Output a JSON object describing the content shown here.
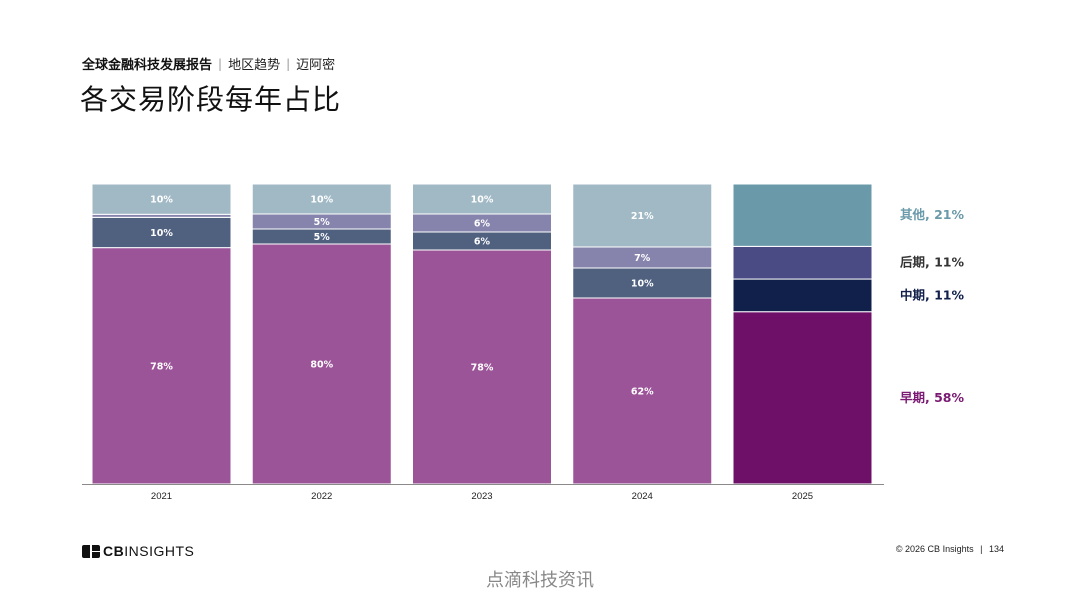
{
  "header": {
    "report": "全球金融科技发展报告",
    "section": "地区趋势",
    "region": "迈阿密",
    "separator": "|",
    "title": "各交易阶段每年占比"
  },
  "chart_data": {
    "type": "bar",
    "stacked": true,
    "categories": [
      "2021",
      "2022",
      "2023",
      "2024",
      "2025"
    ],
    "ylim": [
      0,
      100
    ],
    "legend_position": "right",
    "series": [
      {
        "name": "早期",
        "legend_label": "早期, 58%",
        "values": [
          78,
          80,
          78,
          62,
          58
        ],
        "labels": [
          "78%",
          "80%",
          "78%",
          "62%",
          ""
        ],
        "color": "#9c5499",
        "color_latest": "#6e1068",
        "label_color": "#7a1a72"
      },
      {
        "name": "中期",
        "legend_label": "中期, 11%",
        "values": [
          10,
          5,
          6,
          10,
          11
        ],
        "labels": [
          "10%",
          "5%",
          "6%",
          "10%",
          ""
        ],
        "color": "#506180",
        "color_latest": "#11204a",
        "label_color": "#11204a"
      },
      {
        "name": "后期",
        "legend_label": "后期, 11%",
        "values": [
          1,
          5,
          6,
          7,
          11
        ],
        "labels": [
          "",
          "5%",
          "6%",
          "7%",
          ""
        ],
        "color": "#8684ad",
        "color_latest": "#4a4a85",
        "label_color": "#333333"
      },
      {
        "name": "其他",
        "legend_label": "其他, 21%",
        "values": [
          10,
          10,
          10,
          21,
          21
        ],
        "labels": [
          "10%",
          "10%",
          "10%",
          "21%",
          ""
        ],
        "color": "#a0b9c5",
        "color_latest": "#6a9aaa",
        "label_color": "#6a9aaa"
      }
    ]
  },
  "footer": {
    "logo_prefix": "CB",
    "logo_suffix": "INSIGHTS",
    "copyright": "© 2026 CB Insights",
    "page_sep": "|",
    "page_number": "134"
  },
  "watermark": "点滴科技资讯"
}
